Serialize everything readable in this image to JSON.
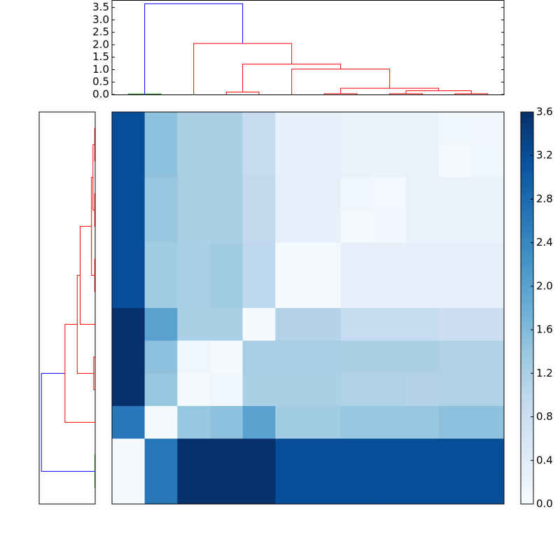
{
  "chart_data": [
    {
      "type": "heatmap",
      "colormap": "Blues",
      "zlim": [
        0,
        3.6
      ],
      "colorbar_ticks": [
        {
          "value": 0,
          "label": "0.0"
        },
        {
          "value": 0.4,
          "label": "0.4"
        },
        {
          "value": 0.8,
          "label": "0.8"
        },
        {
          "value": 1.2,
          "label": "1.2"
        },
        {
          "value": 1.6,
          "label": "1.6"
        },
        {
          "value": 2.0,
          "label": "2.0"
        },
        {
          "value": 2.4,
          "label": "2.4"
        },
        {
          "value": 2.8,
          "label": "2.8"
        },
        {
          "value": 3.2,
          "label": "3.2"
        },
        {
          "value": 3.6,
          "label": "3.6"
        }
      ],
      "matrix": [
        [
          3.2,
          1.5,
          1.2,
          1.2,
          0.9,
          0.3,
          0.3,
          0.25,
          0.25,
          0.25,
          0.15,
          0.1
        ],
        [
          3.2,
          1.5,
          1.2,
          1.2,
          0.9,
          0.3,
          0.3,
          0.25,
          0.25,
          0.25,
          0.05,
          0.15
        ],
        [
          3.2,
          1.4,
          1.2,
          1.2,
          0.95,
          0.3,
          0.3,
          0.15,
          0.08,
          0.25,
          0.25,
          0.25
        ],
        [
          3.2,
          1.4,
          1.2,
          1.2,
          0.95,
          0.3,
          0.3,
          0.05,
          0.1,
          0.25,
          0.25,
          0.25
        ],
        [
          3.2,
          1.3,
          1.25,
          1.3,
          1.0,
          0.05,
          0.05,
          0.3,
          0.3,
          0.35,
          0.35,
          0.35
        ],
        [
          3.2,
          1.3,
          1.25,
          1.3,
          1.0,
          0.05,
          0.05,
          0.3,
          0.3,
          0.35,
          0.35,
          0.35
        ],
        [
          3.6,
          2.0,
          1.2,
          1.2,
          0.05,
          1.1,
          1.1,
          0.9,
          0.9,
          0.9,
          0.8,
          0.8
        ],
        [
          3.6,
          1.5,
          0.15,
          0.05,
          1.25,
          1.25,
          1.25,
          1.2,
          1.2,
          1.2,
          1.15,
          1.15
        ],
        [
          3.6,
          1.4,
          0.05,
          0.15,
          1.2,
          1.2,
          1.2,
          1.15,
          1.15,
          1.1,
          1.15,
          1.15
        ],
        [
          2.6,
          0.05,
          1.4,
          1.5,
          2.0,
          1.3,
          1.3,
          1.4,
          1.4,
          1.4,
          1.5,
          1.5
        ],
        [
          0.05,
          2.6,
          3.6,
          3.6,
          3.6,
          3.2,
          3.2,
          3.2,
          3.2,
          3.2,
          3.2,
          3.2
        ],
        [
          0.05,
          2.6,
          3.6,
          3.6,
          3.6,
          3.2,
          3.2,
          3.2,
          3.2,
          3.2,
          3.2,
          3.2
        ]
      ]
    },
    {
      "type": "dendrogram",
      "orientation": "top",
      "ylim": [
        0,
        3.8
      ],
      "yticks": [
        {
          "value": 0,
          "label": "0.0"
        },
        {
          "value": 0.5,
          "label": "0.5"
        },
        {
          "value": 1,
          "label": "1.0"
        },
        {
          "value": 1.5,
          "label": "1.5"
        },
        {
          "value": 2,
          "label": "2.0"
        },
        {
          "value": 2.5,
          "label": "2.5"
        },
        {
          "value": 3,
          "label": "3.0"
        },
        {
          "value": 3.5,
          "label": "3.5"
        }
      ],
      "links": [
        {
          "color": "#008000",
          "positions": [
            0.5,
            0.5,
            1.5,
            1.5
          ],
          "heights": [
            0,
            0.02,
            0.02,
            0
          ]
        },
        {
          "color": "#0000ff",
          "positions": [
            1,
            1,
            4,
            4
          ],
          "heights": [
            0.02,
            3.65,
            3.65,
            2.05
          ]
        },
        {
          "color": "#ff0000",
          "positions": [
            2.5,
            2.5,
            5.5,
            5.5
          ],
          "heights": [
            0,
            2.05,
            2.05,
            1.22
          ]
        },
        {
          "color": "#ff0000",
          "positions": [
            3.5,
            3.5,
            4.5,
            4.5
          ],
          "heights": [
            0,
            0.1,
            0.1,
            0
          ]
        },
        {
          "color": "#ff0000",
          "positions": [
            4,
            4,
            7,
            7
          ],
          "heights": [
            0.1,
            1.22,
            1.22,
            1.02
          ]
        },
        {
          "color": "#ff0000",
          "positions": [
            5.5,
            5.5,
            8.5,
            8.5
          ],
          "heights": [
            0,
            1.02,
            1.02,
            0.25
          ]
        },
        {
          "color": "#ff0000",
          "positions": [
            6.5,
            6.5,
            7.5,
            7.5
          ],
          "heights": [
            0,
            0.03,
            0.03,
            0
          ]
        },
        {
          "color": "#ff0000",
          "positions": [
            7,
            7,
            10,
            10
          ],
          "heights": [
            0.03,
            0.25,
            0.25,
            0.15
          ]
        },
        {
          "color": "#ff0000",
          "positions": [
            8.5,
            8.5,
            9.5,
            9.5
          ],
          "heights": [
            0,
            0.03,
            0.03,
            0
          ]
        },
        {
          "color": "#ff0000",
          "positions": [
            9,
            9,
            11,
            11
          ],
          "heights": [
            0.03,
            0.15,
            0.15,
            0.03
          ]
        },
        {
          "color": "#ff0000",
          "positions": [
            10.5,
            10.5,
            11.5,
            11.5
          ],
          "heights": [
            0,
            0.03,
            0.03,
            0
          ]
        }
      ]
    },
    {
      "type": "dendrogram",
      "orientation": "left",
      "xlim": [
        0,
        3.8
      ],
      "links": [
        {
          "color": "#008000",
          "positions": [
            11.5,
            11.5,
            10.5,
            10.5
          ],
          "heights": [
            0,
            0.02,
            0.02,
            0
          ]
        },
        {
          "color": "#0000ff",
          "positions": [
            11,
            11,
            8,
            8
          ],
          "heights": [
            0.02,
            3.65,
            3.65,
            2.05
          ]
        },
        {
          "color": "#ff0000",
          "positions": [
            9.5,
            9.5,
            6.5,
            6.5
          ],
          "heights": [
            0,
            2.05,
            2.05,
            1.22
          ]
        },
        {
          "color": "#ff0000",
          "positions": [
            8.5,
            8.5,
            7.5,
            7.5
          ],
          "heights": [
            0,
            0.1,
            0.1,
            0
          ]
        },
        {
          "color": "#ff0000",
          "positions": [
            8,
            8,
            5,
            5
          ],
          "heights": [
            0.1,
            1.22,
            1.22,
            1.02
          ]
        },
        {
          "color": "#ff0000",
          "positions": [
            6.5,
            6.5,
            3.5,
            3.5
          ],
          "heights": [
            0,
            1.02,
            1.02,
            0.25
          ]
        },
        {
          "color": "#ff0000",
          "positions": [
            5.5,
            5.5,
            4.5,
            4.5
          ],
          "heights": [
            0,
            0.03,
            0.03,
            0
          ]
        },
        {
          "color": "#ff0000",
          "positions": [
            5,
            5,
            2,
            2
          ],
          "heights": [
            0.03,
            0.25,
            0.25,
            0.15
          ]
        },
        {
          "color": "#ff0000",
          "positions": [
            3.5,
            3.5,
            2.5,
            2.5
          ],
          "heights": [
            0,
            0.03,
            0.03,
            0
          ]
        },
        {
          "color": "#ff0000",
          "positions": [
            3,
            3,
            1,
            1
          ],
          "heights": [
            0.03,
            0.15,
            0.15,
            0.03
          ]
        },
        {
          "color": "#ff0000",
          "positions": [
            1.5,
            1.5,
            0.5,
            0.5
          ],
          "heights": [
            0,
            0.03,
            0.03,
            0
          ]
        }
      ]
    }
  ]
}
